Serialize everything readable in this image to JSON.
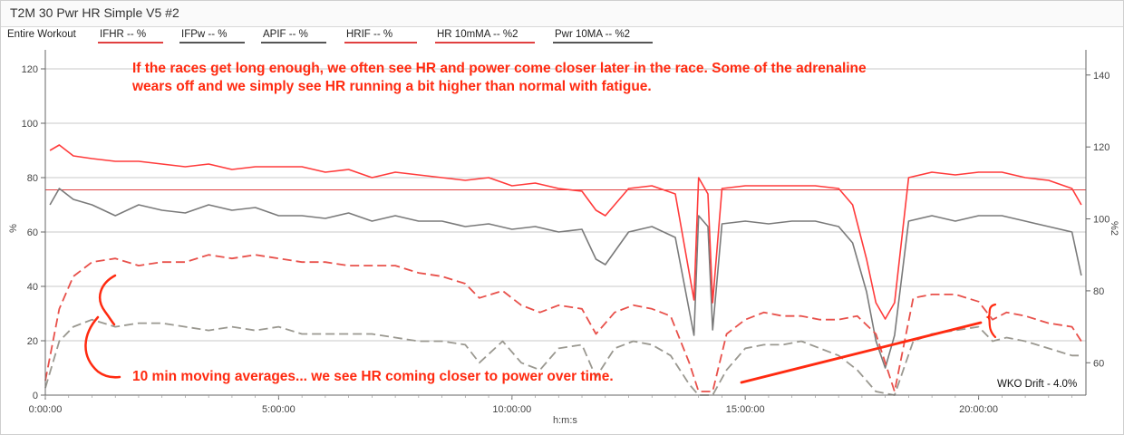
{
  "window": {
    "title": "T2M 30 Pwr HR Simple V5 #2"
  },
  "legend": {
    "range_label": "Entire Workout",
    "items": [
      {
        "label": "IFHR  -- %",
        "color": "#e04040"
      },
      {
        "label": "IFPw  -- %",
        "color": "#555555"
      },
      {
        "label": "APIF  -- %",
        "color": "#555555"
      },
      {
        "label": "HRIF  -- %",
        "color": "#e04040"
      },
      {
        "label": "HR 10mMA  -- %2",
        "color": "#e04040"
      },
      {
        "label": "Pwr 10MA  -- %2",
        "color": "#555555"
      }
    ]
  },
  "annotations": {
    "top": "If the races get long enough, we often see HR and power come closer later in the race. Some of the adrenaline wears off and we simply see HR running a bit higher than normal with fatigue.",
    "bottom": "10 min moving averages... we see HR coming closer to power over time.",
    "drift": "WKO Drift - 4.0%"
  },
  "colors": {
    "hr": "#ff3b3b",
    "power": "#7a7a7a",
    "hr_ma": "#e8504a",
    "pwr_ma": "#9a9890",
    "annotation": "#ff2a10",
    "grid": "#bbbbbb"
  },
  "chart_data": {
    "type": "line",
    "x_unit": "h:m:s",
    "xlim": [
      0,
      22.3
    ],
    "x_ticks": [
      "0:00:00",
      "5:00:00",
      "10:00:00",
      "15:00:00",
      "20:00:00"
    ],
    "x_tick_values": [
      0,
      5,
      10,
      15,
      20
    ],
    "y_left": {
      "label": "%",
      "lim": [
        0,
        127
      ],
      "ticks": [
        0,
        20,
        40,
        60,
        80,
        100,
        120
      ]
    },
    "y_right": {
      "label": "%2",
      "lim": [
        51,
        147
      ],
      "ticks": [
        60,
        80,
        100,
        120,
        140
      ]
    },
    "reference_lines": [
      {
        "axis": "left",
        "value": 75.5,
        "color": "#e04040"
      }
    ],
    "series": [
      {
        "name": "IFHR",
        "axis": "left",
        "style": "solid",
        "x": [
          0.1,
          0.3,
          0.6,
          1.0,
          1.5,
          2.0,
          2.5,
          3.0,
          3.5,
          4.0,
          4.5,
          5.0,
          5.5,
          6.0,
          6.5,
          7.0,
          7.5,
          8.0,
          8.5,
          9.0,
          9.5,
          10.0,
          10.5,
          11.0,
          11.5,
          11.8,
          12.0,
          12.5,
          13.0,
          13.5,
          13.9,
          14.0,
          14.2,
          14.3,
          14.5,
          15.0,
          15.5,
          16.0,
          16.5,
          17.0,
          17.3,
          17.6,
          17.8,
          18.0,
          18.2,
          18.5,
          19.0,
          19.5,
          20.0,
          20.5,
          21.0,
          21.5,
          22.0,
          22.2
        ],
        "y": [
          90,
          92,
          88,
          87,
          86,
          86,
          85,
          84,
          85,
          83,
          84,
          84,
          84,
          82,
          83,
          80,
          82,
          81,
          80,
          79,
          80,
          77,
          78,
          76,
          75,
          68,
          66,
          76,
          77,
          74,
          35,
          80,
          74,
          34,
          76,
          77,
          77,
          77,
          77,
          76,
          70,
          50,
          34,
          28,
          34,
          80,
          82,
          81,
          82,
          82,
          80,
          79,
          76,
          70
        ]
      },
      {
        "name": "IFPw",
        "axis": "left",
        "style": "solid",
        "x": [
          0.1,
          0.3,
          0.6,
          1.0,
          1.5,
          2.0,
          2.5,
          3.0,
          3.5,
          4.0,
          4.5,
          5.0,
          5.5,
          6.0,
          6.5,
          7.0,
          7.5,
          8.0,
          8.5,
          9.0,
          9.5,
          10.0,
          10.5,
          11.0,
          11.5,
          11.8,
          12.0,
          12.5,
          13.0,
          13.5,
          13.9,
          14.0,
          14.2,
          14.3,
          14.5,
          15.0,
          15.5,
          16.0,
          16.5,
          17.0,
          17.3,
          17.6,
          17.8,
          18.0,
          18.2,
          18.5,
          19.0,
          19.5,
          20.0,
          20.5,
          21.0,
          21.5,
          22.0,
          22.2
        ],
        "y": [
          70,
          76,
          72,
          70,
          66,
          70,
          68,
          67,
          70,
          68,
          69,
          66,
          66,
          65,
          67,
          64,
          66,
          64,
          64,
          62,
          63,
          61,
          62,
          60,
          61,
          50,
          48,
          60,
          62,
          58,
          22,
          66,
          62,
          24,
          63,
          64,
          63,
          64,
          64,
          62,
          56,
          38,
          20,
          10,
          22,
          64,
          66,
          64,
          66,
          66,
          64,
          62,
          60,
          44
        ]
      },
      {
        "name": "HR 10mMA",
        "axis": "right",
        "style": "dashed",
        "x": [
          0.0,
          0.3,
          0.6,
          1.0,
          1.5,
          2.0,
          2.5,
          3.0,
          3.5,
          4.0,
          4.5,
          5.0,
          5.5,
          6.0,
          6.5,
          7.0,
          7.5,
          8.0,
          8.5,
          9.0,
          9.3,
          9.8,
          10.2,
          10.6,
          11.0,
          11.5,
          11.8,
          12.2,
          12.6,
          13.0,
          13.4,
          13.8,
          14.0,
          14.3,
          14.6,
          15.0,
          15.4,
          15.8,
          16.2,
          16.6,
          17.0,
          17.4,
          17.8,
          18.2,
          18.6,
          19.0,
          19.5,
          20.0,
          20.3,
          20.6,
          21.0,
          21.5,
          22.0,
          22.2
        ],
        "y": [
          55,
          75,
          84,
          88,
          89,
          87,
          88,
          88,
          90,
          89,
          90,
          89,
          88,
          88,
          87,
          87,
          87,
          85,
          84,
          82,
          78,
          80,
          76,
          74,
          76,
          75,
          68,
          74,
          76,
          75,
          73,
          60,
          52,
          52,
          68,
          72,
          74,
          73,
          73,
          72,
          72,
          73,
          68,
          52,
          78,
          79,
          79,
          77,
          72,
          74,
          73,
          71,
          70,
          66
        ]
      },
      {
        "name": "Pwr 10MA",
        "axis": "right",
        "style": "dashed",
        "x": [
          0.0,
          0.3,
          0.6,
          1.0,
          1.5,
          2.0,
          2.5,
          3.0,
          3.5,
          4.0,
          4.5,
          5.0,
          5.5,
          6.0,
          6.5,
          7.0,
          7.5,
          8.0,
          8.5,
          9.0,
          9.3,
          9.8,
          10.2,
          10.6,
          11.0,
          11.5,
          11.8,
          12.2,
          12.6,
          13.0,
          13.4,
          13.8,
          14.0,
          14.3,
          14.6,
          15.0,
          15.4,
          15.8,
          16.2,
          16.6,
          17.0,
          17.4,
          17.8,
          18.2,
          18.6,
          19.0,
          19.5,
          20.0,
          20.3,
          20.6,
          21.0,
          21.5,
          22.0,
          22.2
        ],
        "y": [
          53,
          66,
          70,
          72,
          70,
          71,
          71,
          70,
          69,
          70,
          69,
          70,
          68,
          68,
          68,
          68,
          67,
          66,
          66,
          65,
          60,
          66,
          60,
          58,
          64,
          65,
          56,
          64,
          66,
          65,
          62,
          54,
          51,
          51,
          58,
          64,
          65,
          65,
          66,
          64,
          62,
          58,
          52,
          51,
          66,
          68,
          69,
          70,
          66,
          67,
          66,
          64,
          62,
          62
        ]
      }
    ]
  }
}
